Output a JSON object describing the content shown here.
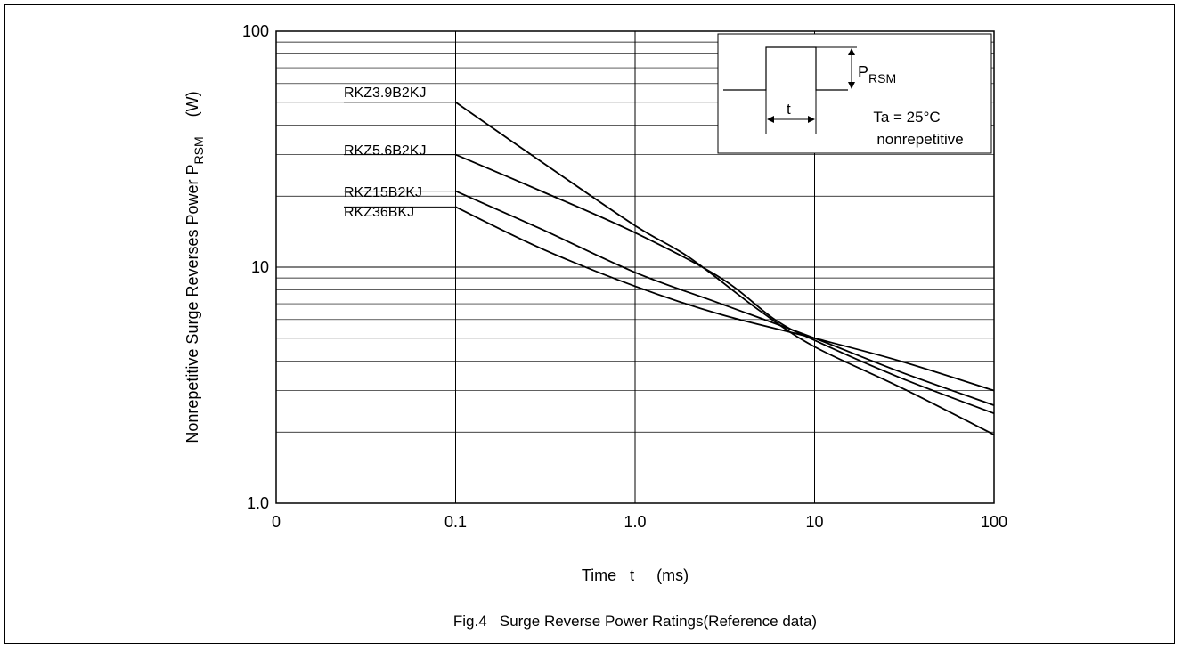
{
  "chart_data": {
    "type": "line",
    "title": "",
    "caption": "Fig.4   Surge Reverse Power Ratings(Reference data)",
    "xlabel": "Time   t     (ms)",
    "ylabel_main": "Nonrepetitive Surge Reverses Power   P",
    "ylabel_sub": "RSM",
    "ylabel_unit": "(W)",
    "x_scale": "log",
    "y_scale": "log",
    "xlim": [
      0.01,
      100
    ],
    "ylim": [
      1,
      100
    ],
    "x_ticks": [
      {
        "value": 0.01,
        "label": "0"
      },
      {
        "value": 0.1,
        "label": "0.1"
      },
      {
        "value": 1,
        "label": "1.0"
      },
      {
        "value": 10,
        "label": "10"
      },
      {
        "value": 100,
        "label": "100"
      }
    ],
    "y_ticks": [
      {
        "value": 1,
        "label": "1.0"
      },
      {
        "value": 10,
        "label": "10"
      },
      {
        "value": 100,
        "label": "100"
      }
    ],
    "grid": true,
    "series": [
      {
        "name": "RKZ3.9B2KJ",
        "points": [
          [
            0.1,
            50
          ],
          [
            0.3,
            28
          ],
          [
            1,
            15
          ],
          [
            2,
            11
          ],
          [
            5,
            6.5
          ],
          [
            10,
            4.6
          ],
          [
            30,
            3.1
          ],
          [
            100,
            1.95
          ]
        ]
      },
      {
        "name": "RKZ5.6B2KJ",
        "points": [
          [
            0.1,
            30
          ],
          [
            0.3,
            21
          ],
          [
            1,
            14
          ],
          [
            3,
            9
          ],
          [
            6,
            6
          ],
          [
            10,
            4.9
          ],
          [
            30,
            3.4
          ],
          [
            100,
            2.4
          ]
        ]
      },
      {
        "name": "RKZ15B2KJ",
        "points": [
          [
            0.1,
            21
          ],
          [
            0.3,
            14.5
          ],
          [
            1,
            9.5
          ],
          [
            3,
            7
          ],
          [
            10,
            5
          ],
          [
            30,
            3.6
          ],
          [
            100,
            2.6
          ]
        ]
      },
      {
        "name": "RKZ36BKJ",
        "points": [
          [
            0.1,
            18
          ],
          [
            0.3,
            12
          ],
          [
            1,
            8.3
          ],
          [
            3,
            6.3
          ],
          [
            10,
            5
          ],
          [
            30,
            4
          ],
          [
            100,
            3
          ]
        ]
      }
    ],
    "inset": {
      "symbol_main": "P",
      "symbol_sub": "RSM",
      "width_symbol": "t",
      "condition_1": "Ta = 25°C",
      "condition_2": "nonrepetitive"
    }
  }
}
